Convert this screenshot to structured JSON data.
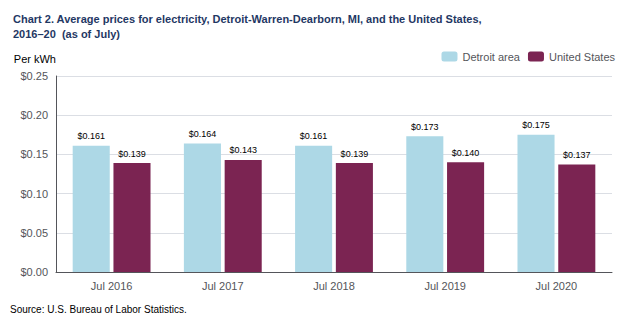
{
  "chart_data": {
    "type": "bar",
    "title": "Chart 2. Average prices for electricity, Detroit-Warren-Dearborn, MI, and the United States,\n2016–20  (as of July)",
    "ylabel": "Per kWh",
    "annotations": [
      "Source: U.S. Bureau of Labor Statistics."
    ],
    "categories": [
      "Jul 2016",
      "Jul 2017",
      "Jul 2018",
      "Jul 2019",
      "Jul 2020"
    ],
    "series": [
      {
        "name": "Detroit area",
        "color": "#ADD8E6",
        "values": [
          0.161,
          0.164,
          0.161,
          0.173,
          0.175
        ],
        "value_labels": [
          "$0.161",
          "$0.164",
          "$0.161",
          "$0.173",
          "$0.175"
        ]
      },
      {
        "name": "United States",
        "color": "#7B2452",
        "values": [
          0.139,
          0.143,
          0.139,
          0.14,
          0.137
        ],
        "value_labels": [
          "$0.139",
          "$0.143",
          "$0.139",
          "$0.140",
          "$0.137"
        ]
      }
    ],
    "ylim": [
      0.0,
      0.25
    ],
    "yticks": [
      {
        "value": 0.0,
        "label": "$0.00"
      },
      {
        "value": 0.05,
        "label": "$0.05"
      },
      {
        "value": 0.1,
        "label": "$0.10"
      },
      {
        "value": 0.15,
        "label": "$0.15"
      },
      {
        "value": 0.2,
        "label": "$0.20"
      },
      {
        "value": 0.25,
        "label": "$0.25"
      }
    ],
    "grid": true,
    "legend": "upper right",
    "data_labels": true
  }
}
